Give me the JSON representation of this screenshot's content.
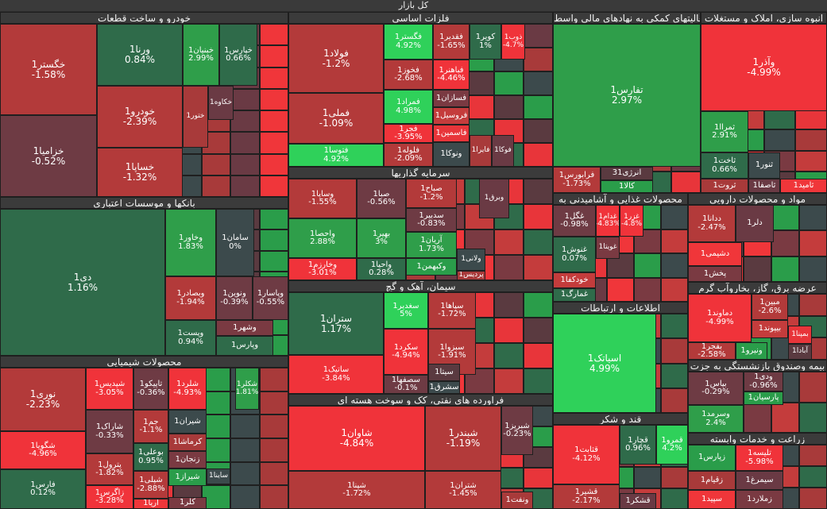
{
  "header": {
    "title": "کل بازار"
  },
  "colors": {
    "up_strong": "#2fd15a",
    "up_mid": "#2f9e4a",
    "up_dark": "#2f6b4a",
    "neutral": "#3c4a4c",
    "down_dark": "#6e3b44",
    "down_mid": "#b33a3a",
    "down_strong": "#f0333a"
  },
  "chart_data": {
    "type": "treemap",
    "sectors": [
      {
        "name": "خودرو و ساخت قطعات",
        "tiles": [
          {
            "name": "خگستر1",
            "change": "-1.58%"
          },
          {
            "name": "ورنا1",
            "change": "0.84%"
          },
          {
            "name": "خبنیان1",
            "change": "2.99%"
          },
          {
            "name": "خپارس1",
            "change": "0.66%"
          },
          {
            "name": "خودرو1",
            "change": "-2.39%"
          },
          {
            "name": "خزامیا1",
            "change": "-0.52%"
          },
          {
            "name": "خساپا1",
            "change": "-1.32%"
          },
          {
            "name": "ختور1",
            "change": ""
          },
          {
            "name": "خکاوه1",
            "change": ""
          }
        ]
      },
      {
        "name": "فلزات اساسی",
        "tiles": [
          {
            "name": "فولاد1",
            "change": "-1.2%"
          },
          {
            "name": "فگستر1",
            "change": "4.92%"
          },
          {
            "name": "فقدیر1",
            "change": "-1.65%"
          },
          {
            "name": "کویر1",
            "change": "1%"
          },
          {
            "name": "ذوب1",
            "change": "-4.7%"
          },
          {
            "name": "فخوز1",
            "change": "-2.68%"
          },
          {
            "name": "فباهنر1",
            "change": "-4.46%"
          },
          {
            "name": "فملی1",
            "change": "-1.09%"
          },
          {
            "name": "فمراد1",
            "change": "4.98%"
          },
          {
            "name": "فسازان1",
            "change": ""
          },
          {
            "name": "فروسیل1",
            "change": ""
          },
          {
            "name": "فجر1",
            "change": "-3.95%"
          },
          {
            "name": "فاسمین1",
            "change": ""
          },
          {
            "name": "فتوسا1",
            "change": "4.92%"
          },
          {
            "name": "فلوله1",
            "change": "-2.09%"
          },
          {
            "name": "ونوکا1",
            "change": ""
          },
          {
            "name": "فایرا1",
            "change": ""
          },
          {
            "name": "فوکا1",
            "change": ""
          }
        ]
      },
      {
        "name": "فعالیتهای کمکی به نهادهای مالی واسط",
        "tiles": [
          {
            "name": "تفارس1",
            "change": "2.97%"
          },
          {
            "name": "فرابورس1",
            "change": "-1.73%"
          },
          {
            "name": "انرژی31",
            "change": ""
          },
          {
            "name": "کالا1",
            "change": ""
          }
        ]
      },
      {
        "name": "انبوه سازی، املاک و مستغلات",
        "tiles": [
          {
            "name": "وآذر1",
            "change": "-4.99%"
          },
          {
            "name": "ثمراا1",
            "change": "2.91%"
          },
          {
            "name": "ثاخت1",
            "change": "0.66%"
          },
          {
            "name": "ثنور1",
            "change": ""
          },
          {
            "name": "ثروت1",
            "change": ""
          },
          {
            "name": "ثاصفا1",
            "change": ""
          },
          {
            "name": "ثامید1",
            "change": ""
          }
        ]
      },
      {
        "name": "بانکها و موسسات اعتباری",
        "tiles": [
          {
            "name": "دی1",
            "change": "1.16%"
          },
          {
            "name": "وخاور1",
            "change": "1.83%"
          },
          {
            "name": "سامان1",
            "change": "0%"
          },
          {
            "name": "وبصادر1",
            "change": "-1.94%"
          },
          {
            "name": "ونوین1",
            "change": "-0.39%"
          },
          {
            "name": "وپاسار1",
            "change": "-0.55%"
          },
          {
            "name": "وشهر1",
            "change": ""
          },
          {
            "name": "وپست1",
            "change": "0.94%"
          },
          {
            "name": "وپارس1",
            "change": ""
          }
        ]
      },
      {
        "name": "سرمایه گذاریها",
        "tiles": [
          {
            "name": "وساپا1",
            "change": "-1.55%"
          },
          {
            "name": "صبا1",
            "change": "-0.56%"
          },
          {
            "name": "صباح1",
            "change": "-1.2%"
          },
          {
            "name": "وبرق1",
            "change": ""
          },
          {
            "name": "سدبیر1",
            "change": "-0.83%"
          },
          {
            "name": "واحصا1",
            "change": "2.88%"
          },
          {
            "name": "بهیر1",
            "change": "3%"
          },
          {
            "name": "آریان1",
            "change": "1.73%"
          },
          {
            "name": "وخارزم1",
            "change": "-3.01%"
          },
          {
            "name": "واحیا1",
            "change": "0.28%"
          },
          {
            "name": "وکبهمن1",
            "change": ""
          },
          {
            "name": "ولانی1",
            "change": ""
          },
          {
            "name": "پردیس1",
            "change": ""
          }
        ]
      },
      {
        "name": "محصولات غذایی و آشامیدنی به",
        "tiles": [
          {
            "name": "غگل1",
            "change": "-0.98%"
          },
          {
            "name": "غدام1",
            "change": "-4.83%"
          },
          {
            "name": "غزر1",
            "change": "-4.8%"
          },
          {
            "name": "غنوش1",
            "change": "0.07%"
          },
          {
            "name": "غویتا1",
            "change": ""
          },
          {
            "name": "خودکفا1",
            "change": ""
          },
          {
            "name": "غمارگ1",
            "change": ""
          }
        ]
      },
      {
        "name": "مواد و محصولات دارویی",
        "tiles": [
          {
            "name": "ددانا1",
            "change": "-2.47%"
          },
          {
            "name": "دلر1",
            "change": ""
          },
          {
            "name": "دشیمی1",
            "change": ""
          },
          {
            "name": "پخش1",
            "change": ""
          }
        ]
      },
      {
        "name": "سیمان، آهک و گچ",
        "tiles": [
          {
            "name": "ستران1",
            "change": "1.17%"
          },
          {
            "name": "سغدیر1",
            "change": "5%"
          },
          {
            "name": "سپاها1",
            "change": "-1.72%"
          },
          {
            "name": "سکرد1",
            "change": "-4.94%"
          },
          {
            "name": "سبزوا1",
            "change": "-1.91%"
          },
          {
            "name": "ساتیک1",
            "change": "-3.84%"
          },
          {
            "name": "سیتا1",
            "change": ""
          },
          {
            "name": "سصفها1",
            "change": "-0.1%"
          },
          {
            "name": "سشرق1",
            "change": ""
          }
        ]
      },
      {
        "name": "عرضه برق، گاز، بخاروآب گرم",
        "tiles": [
          {
            "name": "دماوند1",
            "change": "-4.99%"
          },
          {
            "name": "مبین1",
            "change": "-2.6%"
          },
          {
            "name": "بیپوند1",
            "change": ""
          },
          {
            "name": "بفجر1",
            "change": "-2.58%"
          },
          {
            "name": "بمپنا1",
            "change": ""
          },
          {
            "name": "آبادا1",
            "change": ""
          },
          {
            "name": "ونیرو1",
            "change": ""
          }
        ]
      },
      {
        "name": "اطلاعات و ارتباطات",
        "tiles": [
          {
            "name": "اسیاتک1",
            "change": "4.99%"
          }
        ]
      },
      {
        "name": "محصولات شیمیایی",
        "tiles": [
          {
            "name": "نوری1",
            "change": "-2.23%"
          },
          {
            "name": "شپدیس1",
            "change": "-3.05%"
          },
          {
            "name": "تاپیکو1",
            "change": "-0.36%"
          },
          {
            "name": "شلرد1",
            "change": "-4.93%"
          },
          {
            "name": "شکلر1",
            "change": "1.81%"
          },
          {
            "name": "شیران1",
            "change": ""
          },
          {
            "name": "کرماشا1",
            "change": ""
          },
          {
            "name": "جم1",
            "change": "-1.1%"
          },
          {
            "name": "شاراک1",
            "change": "-0.33%"
          },
          {
            "name": "زنجان1",
            "change": ""
          },
          {
            "name": "شگویا1",
            "change": "-4.96%"
          },
          {
            "name": "بوعلی1",
            "change": "0.95%"
          },
          {
            "name": "پترول1",
            "change": "-1.82%"
          },
          {
            "name": "شپلی1",
            "change": "-2.88%"
          },
          {
            "name": "شیراز1",
            "change": ""
          },
          {
            "name": "ساینا1",
            "change": ""
          },
          {
            "name": "فارس1",
            "change": "0.12%"
          },
          {
            "name": "زاگرس1",
            "change": "-3.28%"
          },
          {
            "name": "آریا1",
            "change": ""
          },
          {
            "name": "کلر1",
            "change": ""
          }
        ]
      },
      {
        "name": "فراورده های نفتی، کک و سوخت هسته ای",
        "tiles": [
          {
            "name": "شاوان1",
            "change": "-4.84%"
          },
          {
            "name": "شبندر1",
            "change": "-1.19%"
          },
          {
            "name": "شبریز1",
            "change": "-0.23%"
          },
          {
            "name": "شپنا1",
            "change": "-1.72%"
          },
          {
            "name": "شتران1",
            "change": "-1.45%"
          },
          {
            "name": "ونفت1",
            "change": ""
          }
        ]
      },
      {
        "name": "بیمه وصندوق بازنشستگی به جزت",
        "tiles": [
          {
            "name": "بپاس1",
            "change": "-0.29%"
          },
          {
            "name": "ودی1",
            "change": "-0.96%"
          },
          {
            "name": "پارسیان1",
            "change": ""
          },
          {
            "name": "وسرمد1",
            "change": "2.4%"
          }
        ]
      },
      {
        "name": "قند و شکر",
        "tiles": [
          {
            "name": "قثابت1",
            "change": "-4.12%"
          },
          {
            "name": "قچار1",
            "change": "0.96%"
          },
          {
            "name": "قمرو1",
            "change": "4.2%"
          },
          {
            "name": "قشیر1",
            "change": "-2.17%"
          },
          {
            "name": "قشکر1",
            "change": ""
          }
        ]
      },
      {
        "name": "زراعت و خدمات وابسته",
        "tiles": [
          {
            "name": "زپارس1",
            "change": ""
          },
          {
            "name": "تلیسه1",
            "change": "-5.98%"
          },
          {
            "name": "زقیام1",
            "change": ""
          },
          {
            "name": "سیمرغ1",
            "change": ""
          },
          {
            "name": "سپید1",
            "change": ""
          },
          {
            "name": "زملارد1",
            "change": ""
          }
        ]
      }
    ]
  }
}
